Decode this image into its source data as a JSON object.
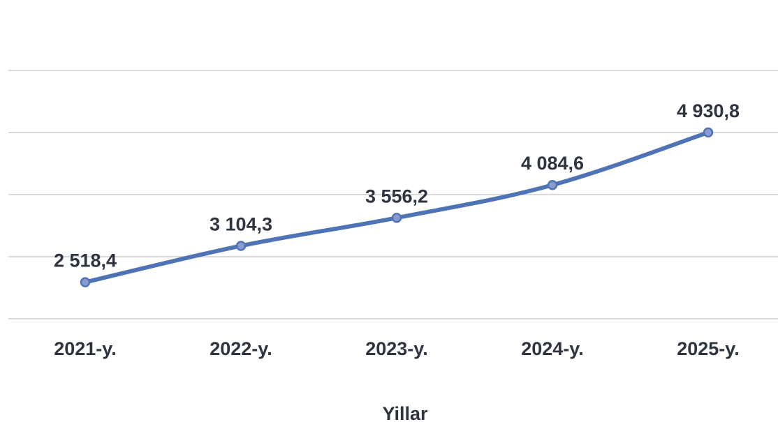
{
  "chart_data": {
    "type": "line",
    "categories": [
      "2021-y.",
      "2022-y.",
      "2023-y.",
      "2024-y.",
      "2025-y."
    ],
    "series": [
      {
        "values": [
          2518.4,
          3104.3,
          3556.2,
          4084.6,
          4930.8
        ],
        "data_labels": [
          "2 518,4",
          "3 104,3",
          "3 556,2",
          "4 084,6",
          "4 930,8"
        ]
      }
    ],
    "xlabel": "Yillar",
    "ylabel": "",
    "ylim": [
      1930,
      6930
    ],
    "grid": true,
    "grid_lines": [
      1930,
      2930,
      3930,
      4930,
      5930
    ],
    "legend": "none",
    "colors": {
      "line": "#4f74b5",
      "marker_fill": "#8a9bd1",
      "marker_stroke": "#4f74b5",
      "text": "#2e3440"
    }
  }
}
